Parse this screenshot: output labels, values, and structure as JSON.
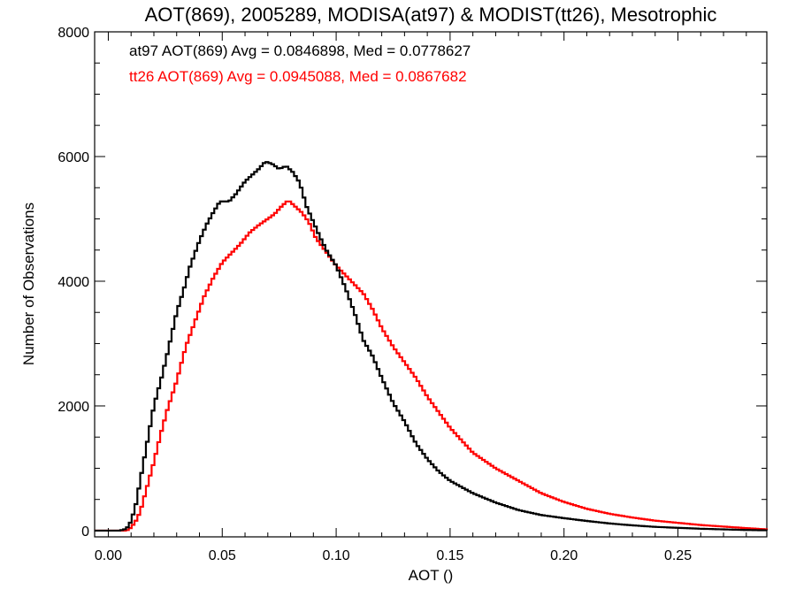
{
  "chart_data": {
    "type": "line",
    "title": "AOT(869), 2005289, MODISA(at97) & MODIST(tt26), Mesotrophic",
    "xlabel": "AOT ()",
    "ylabel": "Number of Observations",
    "xlim": [
      -0.006,
      0.289
    ],
    "ylim": [
      -100,
      8000
    ],
    "xticks": [
      0.0,
      0.05,
      0.1,
      0.15,
      0.2,
      0.25
    ],
    "xtick_labels": [
      "0.00",
      "0.05",
      "0.10",
      "0.15",
      "0.20",
      "0.25"
    ],
    "yticks": [
      0,
      2000,
      4000,
      6000,
      8000
    ],
    "ytick_labels": [
      "0",
      "2000",
      "4000",
      "6000",
      "8000"
    ],
    "step": "histogram",
    "grid": false,
    "series": [
      {
        "name": "at97",
        "color": "#000000",
        "annotation": "at97 AOT(869) Avg = 0.0846898, Med = 0.0778627",
        "points": [
          [
            -0.006,
            0
          ],
          [
            0.005,
            0
          ],
          [
            0.008,
            30
          ],
          [
            0.01,
            150
          ],
          [
            0.012,
            400
          ],
          [
            0.015,
            1000
          ],
          [
            0.018,
            1600
          ],
          [
            0.02,
            2000
          ],
          [
            0.023,
            2400
          ],
          [
            0.026,
            2850
          ],
          [
            0.03,
            3500
          ],
          [
            0.033,
            3850
          ],
          [
            0.036,
            4250
          ],
          [
            0.04,
            4650
          ],
          [
            0.043,
            4900
          ],
          [
            0.046,
            5100
          ],
          [
            0.049,
            5280
          ],
          [
            0.053,
            5280
          ],
          [
            0.056,
            5400
          ],
          [
            0.06,
            5600
          ],
          [
            0.063,
            5700
          ],
          [
            0.066,
            5800
          ],
          [
            0.069,
            5920
          ],
          [
            0.072,
            5880
          ],
          [
            0.075,
            5800
          ],
          [
            0.078,
            5850
          ],
          [
            0.081,
            5750
          ],
          [
            0.084,
            5580
          ],
          [
            0.087,
            5200
          ],
          [
            0.09,
            4950
          ],
          [
            0.093,
            4700
          ],
          [
            0.096,
            4480
          ],
          [
            0.1,
            4250
          ],
          [
            0.104,
            3900
          ],
          [
            0.108,
            3500
          ],
          [
            0.112,
            3050
          ],
          [
            0.116,
            2800
          ],
          [
            0.12,
            2450
          ],
          [
            0.125,
            2050
          ],
          [
            0.13,
            1750
          ],
          [
            0.135,
            1400
          ],
          [
            0.14,
            1150
          ],
          [
            0.145,
            950
          ],
          [
            0.15,
            800
          ],
          [
            0.16,
            600
          ],
          [
            0.17,
            450
          ],
          [
            0.18,
            330
          ],
          [
            0.19,
            250
          ],
          [
            0.2,
            200
          ],
          [
            0.21,
            155
          ],
          [
            0.22,
            115
          ],
          [
            0.23,
            85
          ],
          [
            0.24,
            60
          ],
          [
            0.25,
            45
          ],
          [
            0.26,
            30
          ],
          [
            0.27,
            20
          ],
          [
            0.28,
            10
          ],
          [
            0.289,
            5
          ]
        ]
      },
      {
        "name": "tt26",
        "color": "#ff0000",
        "annotation": "tt26 AOT(869) Avg = 0.0945088, Med = 0.0867682",
        "points": [
          [
            -0.006,
            0
          ],
          [
            0.008,
            0
          ],
          [
            0.01,
            50
          ],
          [
            0.012,
            150
          ],
          [
            0.014,
            300
          ],
          [
            0.017,
            700
          ],
          [
            0.02,
            1100
          ],
          [
            0.023,
            1550
          ],
          [
            0.026,
            1950
          ],
          [
            0.03,
            2400
          ],
          [
            0.034,
            2950
          ],
          [
            0.038,
            3350
          ],
          [
            0.042,
            3750
          ],
          [
            0.046,
            4050
          ],
          [
            0.05,
            4300
          ],
          [
            0.054,
            4450
          ],
          [
            0.058,
            4600
          ],
          [
            0.062,
            4780
          ],
          [
            0.066,
            4900
          ],
          [
            0.07,
            5000
          ],
          [
            0.073,
            5080
          ],
          [
            0.076,
            5200
          ],
          [
            0.079,
            5300
          ],
          [
            0.082,
            5200
          ],
          [
            0.085,
            5100
          ],
          [
            0.088,
            4950
          ],
          [
            0.091,
            4700
          ],
          [
            0.094,
            4550
          ],
          [
            0.097,
            4400
          ],
          [
            0.1,
            4250
          ],
          [
            0.104,
            4100
          ],
          [
            0.108,
            3950
          ],
          [
            0.112,
            3800
          ],
          [
            0.116,
            3550
          ],
          [
            0.12,
            3250
          ],
          [
            0.125,
            2950
          ],
          [
            0.13,
            2700
          ],
          [
            0.135,
            2450
          ],
          [
            0.14,
            2150
          ],
          [
            0.145,
            1900
          ],
          [
            0.15,
            1650
          ],
          [
            0.155,
            1450
          ],
          [
            0.16,
            1250
          ],
          [
            0.17,
            1000
          ],
          [
            0.18,
            800
          ],
          [
            0.19,
            600
          ],
          [
            0.2,
            460
          ],
          [
            0.21,
            350
          ],
          [
            0.22,
            270
          ],
          [
            0.23,
            210
          ],
          [
            0.24,
            160
          ],
          [
            0.25,
            125
          ],
          [
            0.26,
            90
          ],
          [
            0.27,
            65
          ],
          [
            0.28,
            40
          ],
          [
            0.289,
            20
          ]
        ]
      }
    ]
  }
}
